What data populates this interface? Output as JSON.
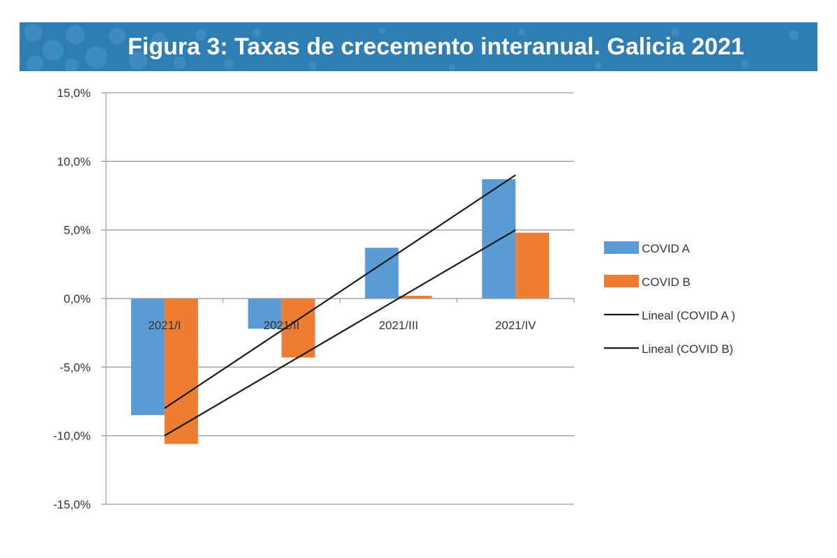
{
  "banner": {
    "title": "Figura 3:  Taxas de crecemento interanual.  Galicia 2021",
    "color": "#2f7db5"
  },
  "chart_data": {
    "type": "bar",
    "title": "Figura 3:  Taxas de crecemento interanual.  Galicia 2021",
    "categories": [
      "2021/I",
      "2021/II",
      "2021/III",
      "2021/IV"
    ],
    "series": [
      {
        "name": "COVID A",
        "values": [
          -8.5,
          -2.2,
          3.7,
          8.7
        ],
        "color": "#5b9bd5"
      },
      {
        "name": "COVID B",
        "values": [
          -10.6,
          -4.3,
          0.2,
          4.8
        ],
        "color": "#ed7d31"
      }
    ],
    "trendlines": [
      {
        "name": "Lineal (COVID A )",
        "of": "COVID A",
        "start": -8.0,
        "end": 9.0,
        "color": "#1a1a1a"
      },
      {
        "name": "Lineal (COVID B)",
        "of": "COVID B",
        "start": -10.0,
        "end": 5.0,
        "color": "#1a1a1a"
      }
    ],
    "ylim": [
      -15,
      15
    ],
    "yticks": [
      15,
      10,
      5,
      0,
      -5,
      -10,
      -15
    ],
    "ytick_labels": [
      "15,0%",
      "10,0%",
      "5,0%",
      "0,0%",
      "-5,0%",
      "-10,0%",
      "-15,0%"
    ],
    "grid": true,
    "legend_position": "right",
    "xlabel": "",
    "ylabel": ""
  }
}
